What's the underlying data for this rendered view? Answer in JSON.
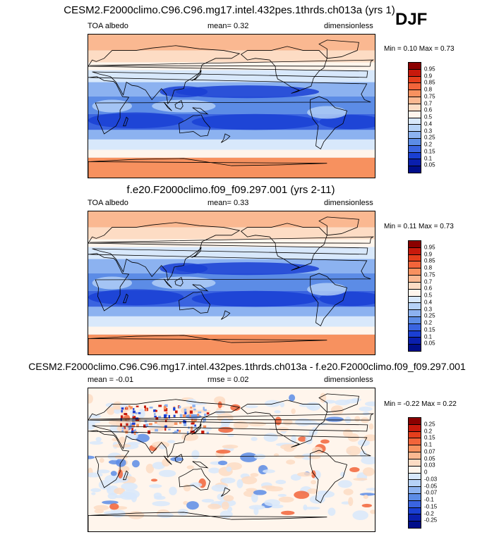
{
  "season": "DJF",
  "panels": [
    {
      "title": "CESM2.F2000climo.C96.C96.mg17.intel.432pes.1thrds.ch013a (yrs 1)",
      "left_label": "TOA albedo",
      "center_label": "mean=  0.32",
      "right_label": "dimensionless",
      "minmax": "Min =  0.10 Max =  0.73",
      "colorbar": {
        "labels": [
          "0.95",
          "0.9",
          "0.85",
          "0.8",
          "0.75",
          "0.7",
          "0.6",
          "0.5",
          "0.4",
          "0.3",
          "0.25",
          "0.2",
          "0.15",
          "0.1",
          "0.05"
        ],
        "colors": [
          "#8b0000",
          "#c8190c",
          "#e53e1c",
          "#f2643a",
          "#f7915f",
          "#fab891",
          "#fddcc4",
          "#fff5ec",
          "#d8e8fb",
          "#b6d2f7",
          "#8cb2f0",
          "#5c8ce6",
          "#3a64e0",
          "#1a3fd3",
          "#0a1fae",
          "#000e8a"
        ]
      },
      "map_style": "abs"
    },
    {
      "title": "f.e20.F2000climo.f09_f09.297.001 (yrs 2-11)",
      "left_label": "TOA albedo",
      "center_label": "mean=  0.33",
      "right_label": "dimensionless",
      "minmax": "Min =  0.11 Max =  0.73",
      "colorbar": {
        "labels": [
          "0.95",
          "0.9",
          "0.85",
          "0.8",
          "0.75",
          "0.7",
          "0.6",
          "0.5",
          "0.4",
          "0.3",
          "0.25",
          "0.2",
          "0.15",
          "0.1",
          "0.05"
        ],
        "colors": [
          "#8b0000",
          "#c8190c",
          "#e53e1c",
          "#f2643a",
          "#f7915f",
          "#fab891",
          "#fddcc4",
          "#fff5ec",
          "#d8e8fb",
          "#b6d2f7",
          "#8cb2f0",
          "#5c8ce6",
          "#3a64e0",
          "#1a3fd3",
          "#0a1fae",
          "#000e8a"
        ]
      },
      "map_style": "abs"
    },
    {
      "title": "CESM2.F2000climo.C96.C96.mg17.intel.432pes.1thrds.ch013a - f.e20.F2000climo.f09_f09.297.001",
      "left_label": "mean = -0.01",
      "center_label": "rmse =  0.02",
      "right_label": "dimensionless",
      "minmax": "Min = -0.22 Max =  0.22",
      "colorbar": {
        "labels": [
          "0.25",
          "0.2",
          "0.15",
          "0.1",
          "0.07",
          "0.05",
          "0.03",
          "0",
          "-0.03",
          "-0.05",
          "-0.07",
          "-0.1",
          "-0.15",
          "-0.2",
          "-0.25"
        ],
        "colors": [
          "#8b0000",
          "#c8190c",
          "#e53e1c",
          "#f2643a",
          "#f7915f",
          "#fab891",
          "#fddcc4",
          "#fff5ec",
          "#d8e8fb",
          "#b6d2f7",
          "#8cb2f0",
          "#5c8ce6",
          "#3a64e0",
          "#1a3fd3",
          "#0a1fae",
          "#000e8a"
        ]
      },
      "map_style": "diff"
    }
  ]
}
